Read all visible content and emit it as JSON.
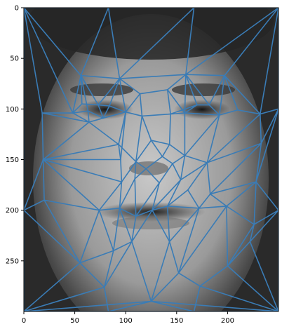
{
  "chart_data": {
    "type": "scatter",
    "title": "",
    "xlabel": "",
    "ylabel": "",
    "xlim": [
      0,
      250
    ],
    "ylim": [
      300,
      0
    ],
    "x_ticks": [
      0,
      50,
      100,
      150,
      200
    ],
    "y_ticks": [
      0,
      50,
      100,
      150,
      200,
      250
    ],
    "grid": false,
    "image": "grayscale average face",
    "mesh_color": "#3a7cb6",
    "points": [
      [
        0,
        0
      ],
      [
        83,
        0
      ],
      [
        167,
        0
      ],
      [
        250,
        0
      ],
      [
        0,
        300
      ],
      [
        83,
        300
      ],
      [
        167,
        300
      ],
      [
        250,
        300
      ],
      [
        0,
        100
      ],
      [
        0,
        200
      ],
      [
        250,
        100
      ],
      [
        250,
        200
      ],
      [
        56,
        67
      ],
      [
        94,
        70
      ],
      [
        114,
        85
      ],
      [
        141,
        81
      ],
      [
        159,
        66
      ],
      [
        197,
        67
      ],
      [
        48,
        104
      ],
      [
        57,
        95
      ],
      [
        63,
        102
      ],
      [
        73,
        96
      ],
      [
        78,
        109
      ],
      [
        84,
        97
      ],
      [
        100,
        103
      ],
      [
        116,
        107
      ],
      [
        144,
        105
      ],
      [
        158,
        104
      ],
      [
        170,
        96
      ],
      [
        182,
        96
      ],
      [
        192,
        106
      ],
      [
        210,
        101
      ],
      [
        232,
        105
      ],
      [
        18,
        104
      ],
      [
        233,
        134
      ],
      [
        19,
        150
      ],
      [
        64,
        113
      ],
      [
        93,
        135
      ],
      [
        95,
        150
      ],
      [
        110,
        152
      ],
      [
        125,
        131
      ],
      [
        143,
        135
      ],
      [
        120,
        159
      ],
      [
        136,
        147
      ],
      [
        146,
        154
      ],
      [
        158,
        146
      ],
      [
        180,
        153
      ],
      [
        96,
        172
      ],
      [
        109,
        169
      ],
      [
        133,
        173
      ],
      [
        154,
        170
      ],
      [
        161,
        180
      ],
      [
        183,
        184
      ],
      [
        228,
        172
      ],
      [
        20,
        190
      ],
      [
        36,
        120
      ],
      [
        74,
        200
      ],
      [
        94,
        198
      ],
      [
        110,
        206
      ],
      [
        126,
        200
      ],
      [
        141,
        196
      ],
      [
        172,
        198
      ],
      [
        199,
        196
      ],
      [
        226,
        214
      ],
      [
        106,
        231
      ],
      [
        143,
        231
      ],
      [
        55,
        252
      ],
      [
        88,
        240
      ],
      [
        152,
        262
      ],
      [
        200,
        255
      ],
      [
        222,
        231
      ],
      [
        79,
        276
      ],
      [
        125,
        290
      ],
      [
        173,
        275
      ]
    ],
    "edges": [
      [
        0,
        1
      ],
      [
        1,
        2
      ],
      [
        2,
        3
      ],
      [
        0,
        8
      ],
      [
        8,
        9
      ],
      [
        9,
        4
      ],
      [
        3,
        10
      ],
      [
        10,
        11
      ],
      [
        11,
        7
      ],
      [
        4,
        5
      ],
      [
        5,
        6
      ],
      [
        6,
        7
      ],
      [
        0,
        33
      ],
      [
        0,
        18
      ],
      [
        0,
        12
      ],
      [
        1,
        12
      ],
      [
        1,
        13
      ],
      [
        2,
        13
      ],
      [
        2,
        16
      ],
      [
        3,
        16
      ],
      [
        3,
        17
      ],
      [
        3,
        32
      ],
      [
        12,
        13
      ],
      [
        13,
        16
      ],
      [
        16,
        17
      ],
      [
        13,
        14
      ],
      [
        14,
        15
      ],
      [
        15,
        16
      ],
      [
        12,
        18
      ],
      [
        12,
        19
      ],
      [
        12,
        20
      ],
      [
        12,
        21
      ],
      [
        13,
        21
      ],
      [
        13,
        23
      ],
      [
        13,
        24
      ],
      [
        14,
        24
      ],
      [
        14,
        25
      ],
      [
        15,
        26
      ],
      [
        15,
        27
      ],
      [
        16,
        27
      ],
      [
        16,
        28
      ],
      [
        16,
        29
      ],
      [
        17,
        29
      ],
      [
        17,
        30
      ],
      [
        17,
        31
      ],
      [
        17,
        32
      ],
      [
        18,
        19
      ],
      [
        19,
        21
      ],
      [
        21,
        23
      ],
      [
        23,
        24
      ],
      [
        18,
        20
      ],
      [
        20,
        22
      ],
      [
        22,
        23
      ],
      [
        22,
        24
      ],
      [
        21,
        22
      ],
      [
        24,
        25
      ],
      [
        25,
        26
      ],
      [
        26,
        27
      ],
      [
        27,
        28
      ],
      [
        28,
        29
      ],
      [
        29,
        30
      ],
      [
        30,
        31
      ],
      [
        31,
        32
      ],
      [
        27,
        30
      ],
      [
        26,
        28
      ],
      [
        33,
        18
      ],
      [
        33,
        35
      ],
      [
        33,
        36
      ],
      [
        18,
        36
      ],
      [
        20,
        36
      ],
      [
        22,
        36
      ],
      [
        24,
        37
      ],
      [
        36,
        37
      ],
      [
        36,
        35
      ],
      [
        35,
        37
      ],
      [
        37,
        38
      ],
      [
        37,
        39
      ],
      [
        24,
        38
      ],
      [
        25,
        39
      ],
      [
        25,
        40
      ],
      [
        26,
        41
      ],
      [
        40,
        41
      ],
      [
        39,
        40
      ],
      [
        40,
        43
      ],
      [
        41,
        43
      ],
      [
        39,
        42
      ],
      [
        42,
        43
      ],
      [
        43,
        44
      ],
      [
        41,
        45
      ],
      [
        44,
        45
      ],
      [
        27,
        45
      ],
      [
        30,
        45
      ],
      [
        30,
        46
      ],
      [
        45,
        46
      ],
      [
        32,
        46
      ],
      [
        32,
        34
      ],
      [
        34,
        46
      ],
      [
        10,
        32
      ],
      [
        10,
        34
      ],
      [
        35,
        38
      ],
      [
        35,
        47
      ],
      [
        38,
        47
      ],
      [
        39,
        47
      ],
      [
        39,
        48
      ],
      [
        42,
        48
      ],
      [
        42,
        49
      ],
      [
        44,
        49
      ],
      [
        44,
        50
      ],
      [
        45,
        50
      ],
      [
        46,
        50
      ],
      [
        46,
        51
      ],
      [
        46,
        52
      ],
      [
        34,
        52
      ],
      [
        34,
        53
      ],
      [
        52,
        53
      ],
      [
        53,
        11
      ],
      [
        10,
        53
      ],
      [
        35,
        54
      ],
      [
        9,
        35
      ],
      [
        9,
        54
      ],
      [
        54,
        56
      ],
      [
        35,
        56
      ],
      [
        47,
        56
      ],
      [
        47,
        57
      ],
      [
        48,
        57
      ],
      [
        48,
        58
      ],
      [
        49,
        58
      ],
      [
        49,
        59
      ],
      [
        50,
        59
      ],
      [
        50,
        60
      ],
      [
        51,
        60
      ],
      [
        51,
        61
      ],
      [
        52,
        61
      ],
      [
        52,
        62
      ],
      [
        53,
        62
      ],
      [
        53,
        63
      ],
      [
        11,
        63
      ],
      [
        56,
        57
      ],
      [
        57,
        58
      ],
      [
        58,
        59
      ],
      [
        59,
        60
      ],
      [
        60,
        61
      ],
      [
        61,
        62
      ],
      [
        62,
        63
      ],
      [
        54,
        66
      ],
      [
        56,
        66
      ],
      [
        56,
        67
      ],
      [
        57,
        67
      ],
      [
        57,
        64
      ],
      [
        58,
        64
      ],
      [
        59,
        64
      ],
      [
        59,
        65
      ],
      [
        60,
        65
      ],
      [
        61,
        65
      ],
      [
        61,
        68
      ],
      [
        62,
        68
      ],
      [
        62,
        69
      ],
      [
        63,
        69
      ],
      [
        63,
        70
      ],
      [
        11,
        70
      ],
      [
        69,
        70
      ],
      [
        9,
        66
      ],
      [
        4,
        66
      ],
      [
        4,
        71
      ],
      [
        66,
        71
      ],
      [
        66,
        67
      ],
      [
        67,
        71
      ],
      [
        67,
        64
      ],
      [
        64,
        71
      ],
      [
        64,
        72
      ],
      [
        65,
        72
      ],
      [
        65,
        68
      ],
      [
        68,
        72
      ],
      [
        68,
        73
      ],
      [
        69,
        73
      ],
      [
        70,
        7
      ],
      [
        69,
        7
      ],
      [
        73,
        7
      ],
      [
        4,
        72
      ],
      [
        72,
        7
      ],
      [
        5,
        72
      ],
      [
        6,
        72
      ],
      [
        71,
        5
      ],
      [
        73,
        6
      ]
    ]
  }
}
